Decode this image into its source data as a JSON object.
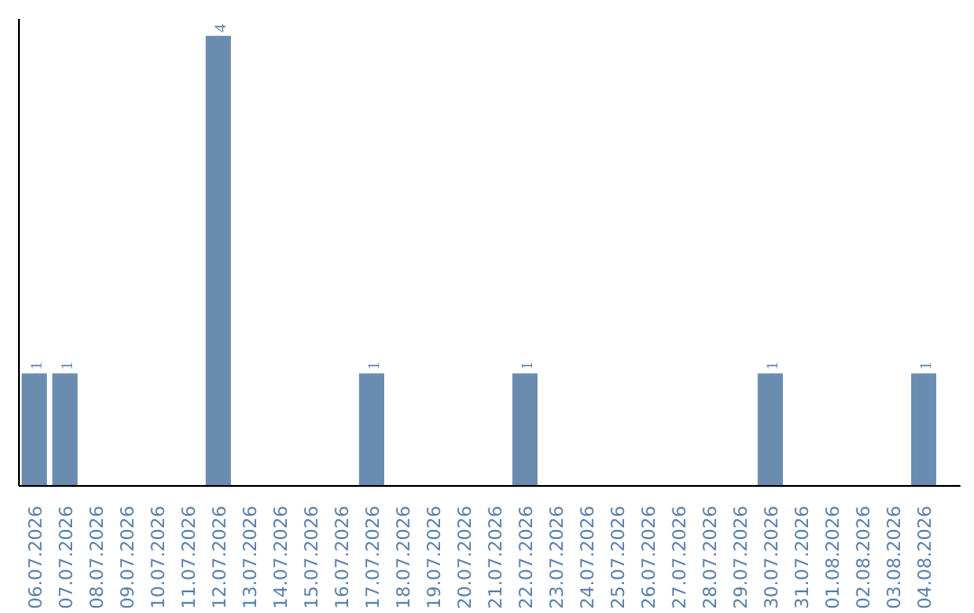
{
  "chart_data": {
    "type": "bar",
    "categories": [
      "06.07.2026",
      "07.07.2026",
      "08.07.2026",
      "09.07.2026",
      "10.07.2026",
      "11.07.2026",
      "12.07.2026",
      "13.07.2026",
      "14.07.2026",
      "15.07.2026",
      "16.07.2026",
      "17.07.2026",
      "18.07.2026",
      "19.07.2026",
      "20.07.2026",
      "21.07.2026",
      "22.07.2026",
      "23.07.2026",
      "24.07.2026",
      "25.07.2026",
      "26.07.2026",
      "27.07.2026",
      "28.07.2026",
      "29.07.2026",
      "30.07.2026",
      "31.07.2026",
      "01.08.2026",
      "02.08.2026",
      "03.08.2026",
      "04.08.2026"
    ],
    "values": [
      1,
      1,
      0,
      0,
      0,
      0,
      4,
      0,
      0,
      0,
      0,
      1,
      0,
      0,
      0,
      0,
      1,
      0,
      0,
      0,
      0,
      0,
      0,
      0,
      1,
      0,
      0,
      0,
      0,
      1
    ],
    "color": "#6a8caf",
    "ylim": [
      0,
      4.15
    ],
    "value_labels": [
      "1",
      "1",
      null,
      null,
      null,
      null,
      "4",
      null,
      null,
      null,
      null,
      "1",
      null,
      null,
      null,
      null,
      "1",
      null,
      null,
      null,
      null,
      null,
      null,
      null,
      "1",
      null,
      null,
      null,
      null,
      "1"
    ],
    "tick_labels": "x",
    "grid": false
  }
}
